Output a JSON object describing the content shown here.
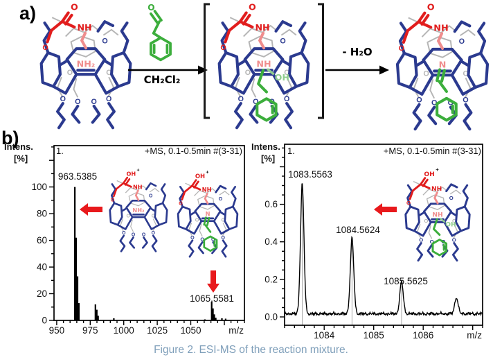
{
  "panel_a": {
    "label": "a)",
    "solvent": "CH₂Cl₂",
    "arrow2_label": "- H₂O",
    "aldehyde_o_label": "O"
  },
  "panel_b": {
    "label": "b)"
  },
  "caption": "Figure 2. ESI-MS of the reaction mixture.",
  "colors": {
    "blue": "#2b3a8f",
    "red": "#e11d1d",
    "pink": "#f08d8d",
    "green": "#3cae3c",
    "light_green": "#90cd8e",
    "gray": "#b5b5b5",
    "arrow_red": "#e8191c",
    "caption": "#7f9fba"
  },
  "molecules": {
    "amine": {
      "atom_o": "O",
      "top_o": "O",
      "plus": "",
      "arm": "NH",
      "center": "NH₂",
      "oh": "",
      "green": "none"
    },
    "hemiaminal": {
      "atom_o": "O",
      "top_o": "O",
      "plus": "",
      "arm": "NH",
      "center": "NH",
      "oh": "OH",
      "green": "benzyl"
    },
    "imine": {
      "atom_o": "O",
      "top_o": "O",
      "plus": "",
      "arm": "NH",
      "center": "N",
      "oh": "",
      "green": "benzyl-double"
    },
    "amine_h": {
      "atom_o": "O",
      "top_o": "OH",
      "plus": "+",
      "arm": "NH",
      "center": "NH₂",
      "oh": "",
      "green": "none"
    },
    "imine_h": {
      "atom_o": "O",
      "top_o": "OH",
      "plus": "+",
      "arm": "NH",
      "center": "N",
      "oh": "",
      "green": "benzyl-double"
    },
    "hemiaminal_h": {
      "atom_o": "O",
      "top_o": "OH",
      "plus": "+",
      "arm": "NH",
      "center": "NH",
      "oh": "OH",
      "green": "benzyl"
    }
  },
  "chart_data": [
    {
      "id": "left-spectrum",
      "type": "bar",
      "header_left": "1.",
      "header_right": "+MS, 0.1-0.5min #(3-31)",
      "ylabel_line1": "Intens.",
      "ylabel_line2": "[%]",
      "xlabel": "m/z",
      "xlim": [
        948,
        1090
      ],
      "ylim": [
        0,
        131
      ],
      "yticks": [
        0,
        20,
        40,
        60,
        80,
        100
      ],
      "ytick_labels": [
        "0",
        "20",
        "40",
        "60",
        "80",
        "100"
      ],
      "ytick_minor_step": 10,
      "ytick_major_step": 20,
      "xticks": [
        950,
        975,
        1000,
        1025,
        1050
      ],
      "xtick_minor_step": 5,
      "xtick_major_step": 25,
      "grid": false,
      "labeled_peaks": [
        {
          "mz": 963.5385,
          "intensity": 100,
          "label": "963.5385"
        },
        {
          "mz": 1065.5581,
          "intensity": 14,
          "label": "1065.5581"
        }
      ],
      "peaks": [
        [
          963.5385,
          100
        ],
        [
          964.54,
          62
        ],
        [
          965.54,
          33
        ],
        [
          966.55,
          13
        ],
        [
          978.9,
          12
        ],
        [
          979.9,
          8
        ],
        [
          980.9,
          3.5
        ],
        [
          992.6,
          1.6
        ],
        [
          1060.5,
          0.8
        ],
        [
          1065.5581,
          14
        ],
        [
          1066.56,
          9
        ],
        [
          1067.56,
          4.5
        ],
        [
          1068.6,
          2
        ],
        [
          1073.2,
          1.6
        ],
        [
          1076.0,
          1.3
        ]
      ]
    },
    {
      "id": "right-spectrum",
      "type": "line",
      "header_left": "1.",
      "header_right": "+MS, 0.1-0.5min #(3-31)",
      "ylabel_line1": "Intens.",
      "ylabel_line2": "[%]",
      "xlabel": "m/z",
      "xlim": [
        1083.2,
        1087.2
      ],
      "ylim": [
        0,
        0.92
      ],
      "yticks": [
        0.0,
        0.2,
        0.4,
        0.6
      ],
      "ytick_labels": [
        "0.0",
        "0.2",
        "0.4",
        "0.6"
      ],
      "ytick_minor_step": 0.05,
      "ytick_major_step": 0.2,
      "xticks": [
        1084,
        1085,
        1086
      ],
      "xtick_minor_step": 0.2,
      "xtick_major_step": 1,
      "grid": false,
      "noise_level": 0.025,
      "peak_sigma": 0.035,
      "labeled_peaks": [
        {
          "mz": 1083.5563,
          "intensity": 0.69,
          "label": "1083.5563"
        },
        {
          "mz": 1084.5624,
          "intensity": 0.4,
          "label": "1084.5624"
        },
        {
          "mz": 1085.5625,
          "intensity": 0.17,
          "label": "1085.5625"
        }
      ],
      "peaks": [
        [
          1083.5563,
          0.69
        ],
        [
          1084.5624,
          0.4
        ],
        [
          1085.5625,
          0.17
        ],
        [
          1086.67,
          0.085
        ]
      ]
    }
  ]
}
